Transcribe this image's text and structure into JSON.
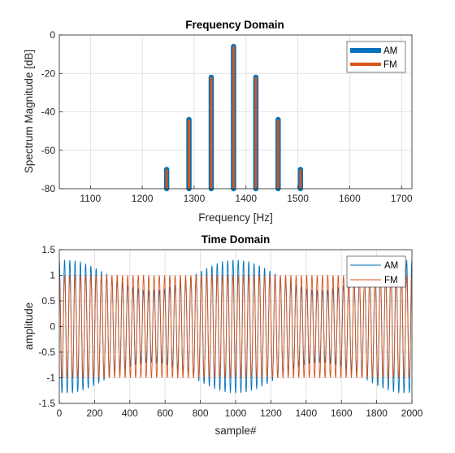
{
  "colors": {
    "am": "#0072BD",
    "fm": "#D95319",
    "grid": "#dcdcdc",
    "axis": "#262626"
  },
  "chart_data": [
    {
      "type": "bar",
      "title": "Frequency Domain",
      "xlabel": "Frequency [Hz]",
      "ylabel": "Spectrum Magnitude [dB]",
      "xlim": [
        1040,
        1720
      ],
      "ylim": [
        -80,
        0
      ],
      "xticks": [
        "1100",
        "1200",
        "1300",
        "1400",
        "1500",
        "1600",
        "1700"
      ],
      "yticks": [
        "0",
        "-20",
        "-40",
        "-60",
        "-80"
      ],
      "grid": true,
      "legend_position": "top-right",
      "x": [
        1247,
        1290,
        1333,
        1376,
        1419,
        1462,
        1505
      ],
      "series": [
        {
          "name": "AM",
          "values": [
            -70,
            -44,
            -22,
            -6,
            -22,
            -44,
            -70
          ]
        },
        {
          "name": "FM",
          "values": [
            -70,
            -44,
            -22,
            -6,
            -22,
            -44,
            -70
          ]
        }
      ]
    },
    {
      "type": "line",
      "title": "Time Domain",
      "xlabel": "sample#",
      "ylabel": "amplitude",
      "xlim": [
        0,
        2000
      ],
      "ylim": [
        -1.5,
        1.5
      ],
      "xticks": [
        "0",
        "200",
        "400",
        "600",
        "800",
        "1000",
        "1200",
        "1400",
        "1600",
        "1800",
        "2000"
      ],
      "yticks": [
        "1.5",
        "1",
        "0.5",
        "0",
        "-0.5",
        "-1",
        "-1.5"
      ],
      "grid": true,
      "legend_position": "top-right",
      "carrier_cycles": 67,
      "envelope_period_samples": 960,
      "series": [
        {
          "name": "AM",
          "peak_range": [
            0.7,
            1.3
          ]
        },
        {
          "name": "FM",
          "peak_range": [
            -1,
            1
          ]
        }
      ]
    }
  ]
}
